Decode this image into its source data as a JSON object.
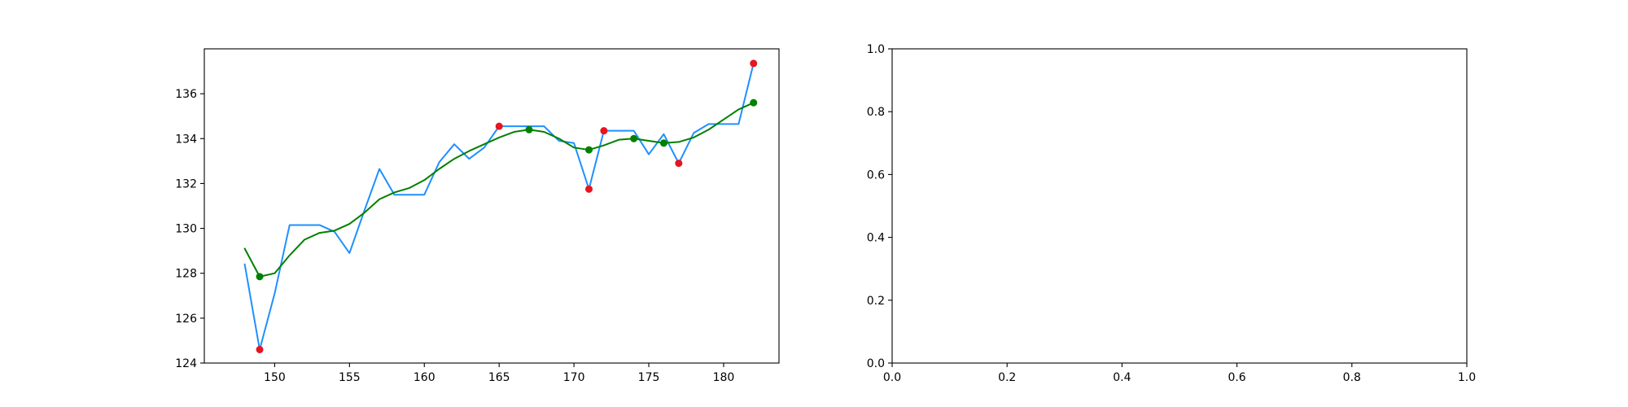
{
  "chart_data": [
    {
      "type": "line",
      "xlim": [
        145.3,
        183.7
      ],
      "ylim": [
        124,
        138
      ],
      "xticks": [
        150,
        155,
        160,
        165,
        170,
        175,
        180
      ],
      "yticks": [
        124,
        126,
        128,
        130,
        132,
        134,
        136
      ],
      "grid": false,
      "series": [
        {
          "kind": "line",
          "color": "#1e90ff",
          "x": [
            148,
            149,
            150,
            151,
            152,
            153,
            154,
            155,
            156,
            157,
            158,
            159,
            160,
            161,
            162,
            163,
            164,
            165,
            166,
            167,
            168,
            169,
            170,
            171,
            172,
            173,
            174,
            175,
            176,
            177,
            178,
            179,
            180,
            181,
            182
          ],
          "y": [
            128.4,
            124.6,
            127.1,
            130.15,
            130.15,
            130.15,
            129.85,
            128.9,
            130.8,
            132.65,
            131.5,
            131.5,
            131.5,
            132.95,
            133.75,
            133.1,
            133.6,
            134.55,
            134.55,
            134.55,
            134.55,
            133.9,
            133.8,
            131.75,
            134.35,
            134.35,
            134.35,
            133.3,
            134.2,
            132.9,
            134.25,
            134.65,
            134.65,
            134.65,
            137.35
          ]
        },
        {
          "kind": "line",
          "color": "#008000",
          "x": [
            148,
            149,
            150,
            151,
            152,
            153,
            154,
            155,
            156,
            157,
            158,
            159,
            160,
            161,
            162,
            163,
            164,
            165,
            166,
            167,
            168,
            169,
            170,
            171,
            172,
            173,
            174,
            175,
            176,
            177,
            178,
            179,
            180,
            181,
            182
          ],
          "y": [
            129.1,
            127.85,
            128.0,
            128.8,
            129.5,
            129.8,
            129.9,
            130.2,
            130.7,
            131.3,
            131.6,
            131.8,
            132.15,
            132.65,
            133.1,
            133.45,
            133.75,
            134.05,
            134.3,
            134.4,
            134.3,
            134.0,
            133.6,
            133.5,
            133.7,
            133.95,
            134.0,
            133.9,
            133.8,
            133.85,
            134.05,
            134.4,
            134.85,
            135.3,
            135.6
          ]
        },
        {
          "kind": "scatter",
          "color": "#e8141e",
          "x": [
            149,
            165,
            171,
            172,
            177,
            182
          ],
          "y": [
            124.6,
            134.55,
            131.75,
            134.35,
            132.9,
            137.35
          ]
        },
        {
          "kind": "scatter",
          "color": "#008000",
          "x": [
            149,
            167,
            171,
            174,
            176,
            182
          ],
          "y": [
            127.85,
            134.4,
            133.5,
            134.0,
            133.8,
            135.6
          ]
        }
      ]
    },
    {
      "type": "line",
      "xlim": [
        0.0,
        1.0
      ],
      "ylim": [
        0.0,
        1.0
      ],
      "xticks": [
        "0.0",
        "0.2",
        "0.4",
        "0.6",
        "0.8",
        "1.0"
      ],
      "yticks": [
        "0.0",
        "0.2",
        "0.4",
        "0.6",
        "0.8",
        "1.0"
      ],
      "grid": false,
      "series": []
    }
  ]
}
